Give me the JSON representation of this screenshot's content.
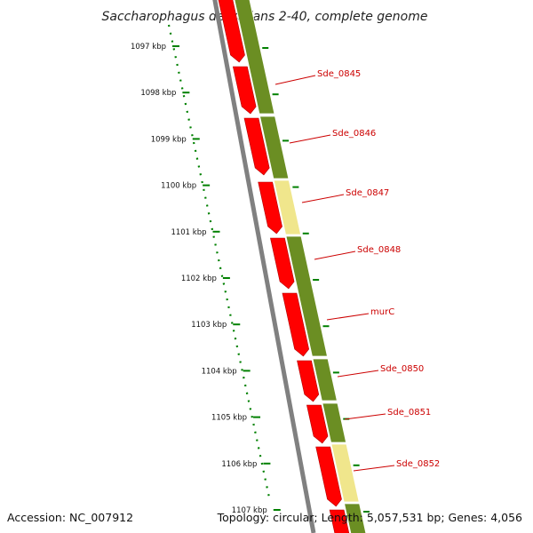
{
  "title": "Saccharophagus degradans 2-40, complete genome",
  "ticks": [
    "1097 kbp",
    "1098 kbp",
    "1099 kbp",
    "1100 kbp",
    "1101 kbp",
    "1102 kbp",
    "1103 kbp",
    "1104 kbp",
    "1105 kbp",
    "1106 kbp",
    "1107 kbp"
  ],
  "genes": [
    "Sde_0845",
    "Sde_0846",
    "Sde_0847",
    "Sde_0848",
    "murC",
    "Sde_0850",
    "Sde_0851",
    "Sde_0852"
  ],
  "footer": {
    "accession": "Accession: NC_007912",
    "summary": "Topology: circular; Length: 5,057,531 bp; Genes: 4,056"
  },
  "colors": {
    "cds_arrow": "#ff0000",
    "band_green": "#6b8e23",
    "band_pale": "#f0e68c",
    "backbone": "#808080",
    "scale": "#008000",
    "label": "#cc0000"
  }
}
